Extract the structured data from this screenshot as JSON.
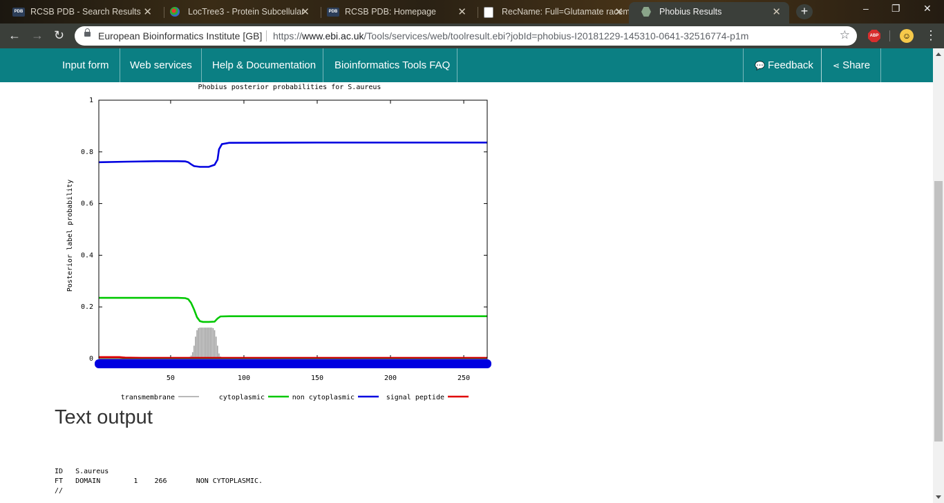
{
  "tabs": [
    {
      "favicon": "pdb-favicon",
      "title": "RCSB PDB - Search Results",
      "favicon_text": "PDB"
    },
    {
      "favicon": "loctree-favicon",
      "title": "LocTree3 - Protein Subcellular"
    },
    {
      "favicon": "pdb-favicon",
      "title": "RCSB PDB: Homepage",
      "favicon_text": "PDB"
    },
    {
      "favicon": "document-favicon",
      "title": "RecName: Full=Glutamate racem"
    },
    {
      "favicon": "phobius-favicon",
      "title": "Phobius Results",
      "active": true
    }
  ],
  "omnibox": {
    "origin": "European Bioinformatics Institute [GB]",
    "url_scheme": "https://",
    "url_host": "www.ebi.ac.uk",
    "url_path": "/Tools/services/web/toolresult.ebi?jobId=phobius-I20181229-145310-0641-32516774-p1m"
  },
  "extension": {
    "abp_label": "ABP"
  },
  "sitenav": {
    "left": [
      "Input form",
      "Web services",
      "Help & Documentation",
      "Bioinformatics Tools FAQ"
    ],
    "feedback": "Feedback",
    "share": "Share"
  },
  "chart_data": {
    "type": "line",
    "title": "Phobius posterior probabilities for S.aureus",
    "xlabel": "",
    "ylabel": "Posterior label probability",
    "xlim": [
      1,
      266
    ],
    "ylim": [
      0,
      1
    ],
    "x_ticks": [
      50,
      100,
      150,
      200,
      250
    ],
    "y_ticks": [
      "0",
      "0.2",
      "0.4",
      "0.6",
      "0.8",
      "1"
    ],
    "y_tick_values": [
      0,
      0.2,
      0.4,
      0.6,
      0.8,
      1.0
    ],
    "grid": false,
    "legend_position": "bottom",
    "series": [
      {
        "name": "transmembrane",
        "style": "impulses",
        "color": "#a0a0a0",
        "points": [
          [
            60,
            0
          ],
          [
            61,
            0.002
          ],
          [
            62,
            0.004
          ],
          [
            63,
            0.007
          ],
          [
            64,
            0.012
          ],
          [
            65,
            0.025
          ],
          [
            66,
            0.05
          ],
          [
            67,
            0.085
          ],
          [
            68,
            0.11
          ],
          [
            69,
            0.118
          ],
          [
            70,
            0.12
          ],
          [
            72,
            0.12
          ],
          [
            74,
            0.12
          ],
          [
            76,
            0.12
          ],
          [
            78,
            0.12
          ],
          [
            79,
            0.118
          ],
          [
            80,
            0.11
          ],
          [
            81,
            0.085
          ],
          [
            82,
            0.05
          ],
          [
            83,
            0.02
          ],
          [
            84,
            0.008
          ],
          [
            86,
            0.003
          ],
          [
            88,
            0.001
          ],
          [
            90,
            0
          ]
        ]
      },
      {
        "name": "cytoplasmic",
        "style": "line",
        "color": "#00c800",
        "points": [
          [
            1,
            0.235
          ],
          [
            20,
            0.235
          ],
          [
            40,
            0.235
          ],
          [
            55,
            0.235
          ],
          [
            60,
            0.234
          ],
          [
            62,
            0.23
          ],
          [
            64,
            0.215
          ],
          [
            66,
            0.19
          ],
          [
            68,
            0.16
          ],
          [
            70,
            0.145
          ],
          [
            72,
            0.142
          ],
          [
            76,
            0.142
          ],
          [
            80,
            0.143
          ],
          [
            82,
            0.155
          ],
          [
            84,
            0.163
          ],
          [
            90,
            0.164
          ],
          [
            150,
            0.164
          ],
          [
            266,
            0.164
          ]
        ]
      },
      {
        "name": "non cytoplasmic",
        "style": "line",
        "color": "#0000e0",
        "points": [
          [
            1,
            0.76
          ],
          [
            20,
            0.762
          ],
          [
            40,
            0.764
          ],
          [
            55,
            0.764
          ],
          [
            60,
            0.763
          ],
          [
            62,
            0.76
          ],
          [
            64,
            0.752
          ],
          [
            66,
            0.745
          ],
          [
            70,
            0.742
          ],
          [
            76,
            0.742
          ],
          [
            80,
            0.75
          ],
          [
            82,
            0.77
          ],
          [
            83,
            0.81
          ],
          [
            85,
            0.83
          ],
          [
            90,
            0.835
          ],
          [
            150,
            0.836
          ],
          [
            266,
            0.836
          ]
        ]
      },
      {
        "name": "signal peptide",
        "style": "line",
        "color": "#e00000",
        "points": [
          [
            1,
            0.006
          ],
          [
            15,
            0.006
          ],
          [
            19,
            0.004
          ],
          [
            30,
            0.003
          ],
          [
            266,
            0.003
          ]
        ]
      }
    ]
  },
  "text_output": {
    "heading": "Text output",
    "lines": [
      "ID   S.aureus",
      "FT   DOMAIN        1    266       NON CYTOPLASMIC.",
      "//"
    ]
  }
}
